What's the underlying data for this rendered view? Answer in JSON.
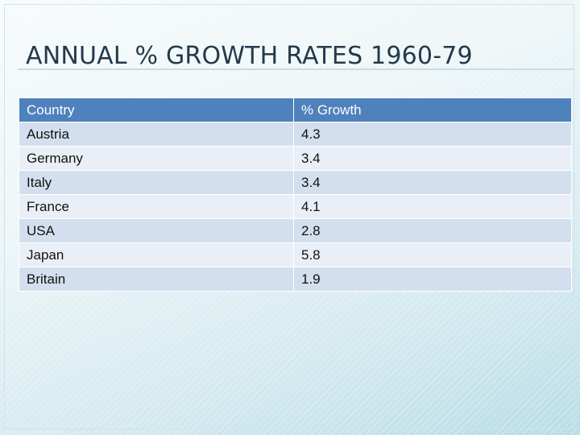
{
  "slide": {
    "title": "ANNUAL % GROWTH RATES 1960-79"
  },
  "table": {
    "headers": [
      "Country",
      "% Growth"
    ],
    "rows": [
      [
        "Austria",
        "4.3"
      ],
      [
        "Germany",
        "3.4"
      ],
      [
        "Italy",
        "3.4"
      ],
      [
        "France",
        "4.1"
      ],
      [
        "USA",
        "2.8"
      ],
      [
        "Japan",
        "5.8"
      ],
      [
        "Britain",
        "1.9"
      ]
    ]
  },
  "colors": {
    "header_bg": "#4f81bd",
    "row_odd": "#d3dfee",
    "row_even": "#eaeff7",
    "title": "#233a4a"
  }
}
